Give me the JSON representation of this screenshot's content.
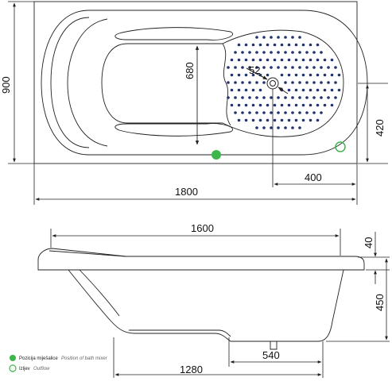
{
  "dimensions": {
    "length": "1800",
    "width": "900",
    "inner_width": "680",
    "drain_offset_x": "400",
    "drain_offset_y": "420",
    "drain_diameter": "52",
    "top_length": "1600",
    "rim_height": "40",
    "depth": "450",
    "base_length": "1280",
    "support_length": "540"
  },
  "legend": {
    "item1_label": "Pozicija miješalice",
    "item1_sub": "Position of bath mixer",
    "item2_label": "Izljev",
    "item2_sub": "Outflow"
  },
  "colors": {
    "mixer_dot": "#3cb54a",
    "outflow_ring": "#3cb54a",
    "massage_dots": "#22336e",
    "line": "#222222"
  }
}
